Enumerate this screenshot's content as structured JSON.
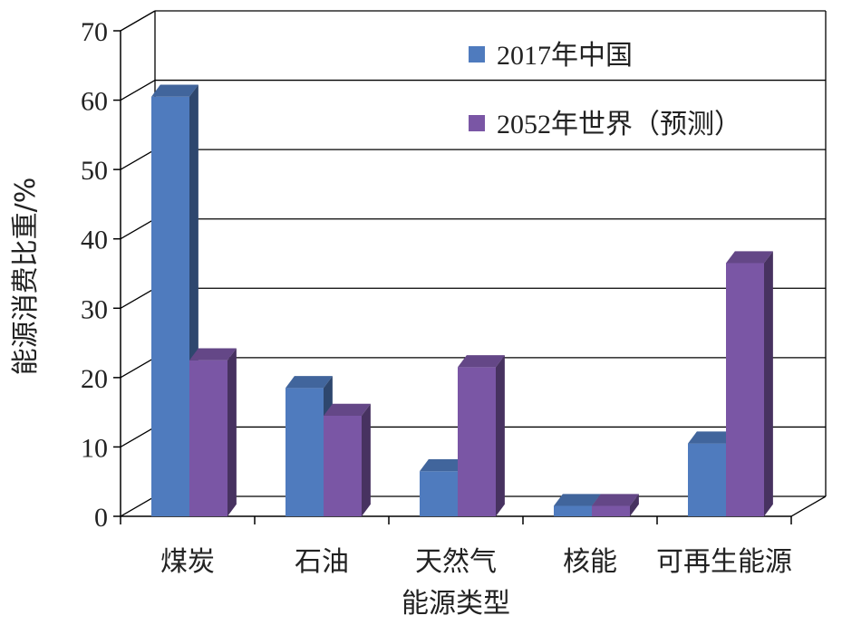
{
  "chart_data": {
    "type": "bar",
    "categories": [
      "煤炭",
      "石油",
      "天然气",
      "核能",
      "可再生能源"
    ],
    "series": [
      {
        "name": "2017年中国",
        "values": [
          60.5,
          18.5,
          6.5,
          1.5,
          10.5
        ],
        "color": "#4F7BBE"
      },
      {
        "name": "2052年世界（预测）",
        "values": [
          22.5,
          14.5,
          21.5,
          1.5,
          36.5
        ],
        "color": "#7A56A5"
      }
    ],
    "xlabel": "能源类型",
    "ylabel": "能源消费比重/%",
    "ylim": [
      0,
      70
    ],
    "yticks": [
      "0",
      "10",
      "20",
      "30",
      "40",
      "50",
      "60",
      "70"
    ],
    "grid": true,
    "legend_position": "top-right",
    "style": "3d-clustered-column"
  }
}
